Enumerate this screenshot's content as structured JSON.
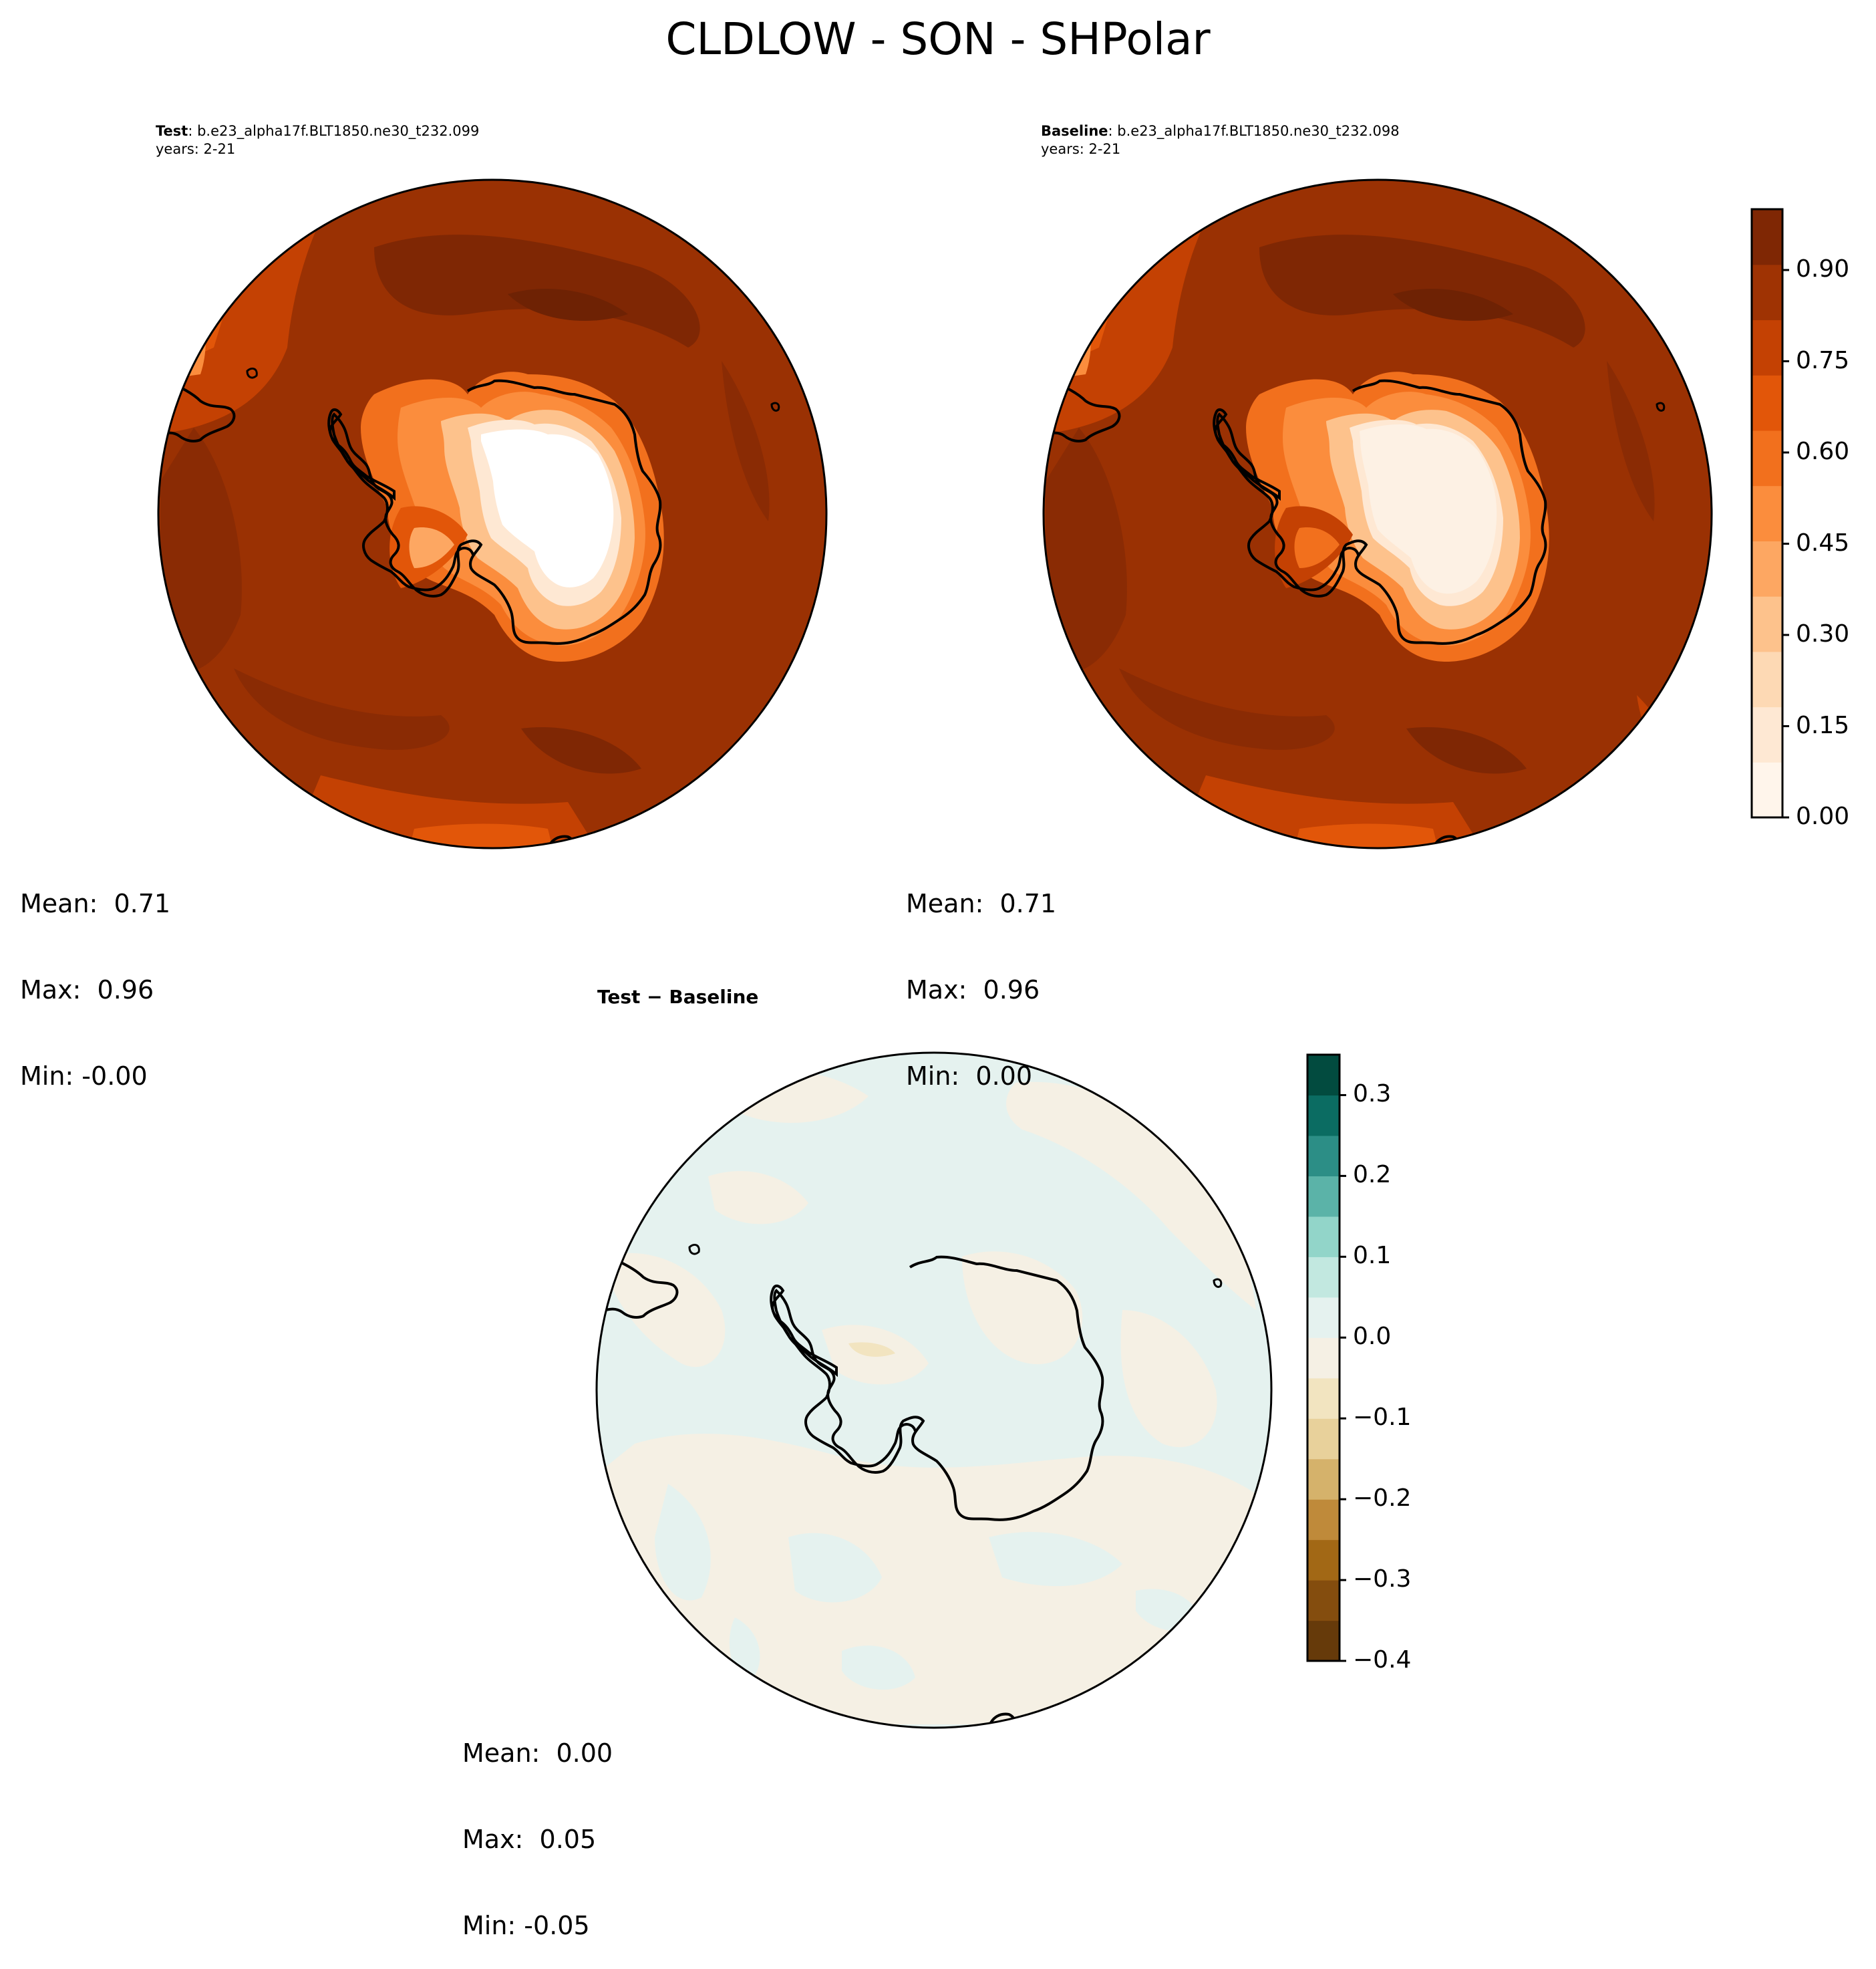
{
  "figure_title": "CLDLOW - SON - SHPolar",
  "panels": [
    {
      "id": "test",
      "label_bold": "Test",
      "label_rest": ": b.e23_alpha17f.BLT1850.ne30_t232.099",
      "years": "years: 2-21",
      "stats": {
        "mean": "Mean:  0.71",
        "max": "Max:  0.96",
        "min": "Min: -0.00"
      }
    },
    {
      "id": "baseline",
      "label_bold": "Baseline",
      "label_rest": ": b.e23_alpha17f.BLT1850.ne30_t232.098",
      "years": "years: 2-21",
      "stats": {
        "mean": "Mean:  0.71",
        "max": "Max:  0.96",
        "min": "Min:  0.00"
      }
    },
    {
      "id": "diff",
      "title": "Test − Baseline",
      "stats": {
        "mean": "Mean:  0.00",
        "max": "Max:  0.05",
        "min": "Min: -0.05"
      }
    }
  ],
  "colorbars": {
    "field": {
      "colormap": "Oranges",
      "range": [
        0.0,
        1.0
      ],
      "ticks": [
        "0.00",
        "0.15",
        "0.30",
        "0.45",
        "0.60",
        "0.75",
        "0.90"
      ],
      "colors": [
        "#fff5eb",
        "#fee8d3",
        "#fdd9b4",
        "#fdc28c",
        "#fda762",
        "#fb8d3d",
        "#f2701d",
        "#e25609",
        "#c44103",
        "#9f3303",
        "#7f2704"
      ]
    },
    "diff": {
      "colormap": "BrBG",
      "range": [
        -0.4,
        0.35
      ],
      "ticks": [
        "−0.4",
        "−0.3",
        "−0.2",
        "−0.1",
        "0.0",
        "0.1",
        "0.2",
        "0.3"
      ],
      "colors": [
        "#663a0a",
        "#844d0e",
        "#a26815",
        "#bf8a3a",
        "#d5b26b",
        "#e8d19b",
        "#f2e4c0",
        "#f5f0e4",
        "#e5f2ef",
        "#c2e8e0",
        "#92d5c9",
        "#5bb3a8",
        "#2c8e86",
        "#0b6c62",
        "#024b3f"
      ]
    }
  }
}
